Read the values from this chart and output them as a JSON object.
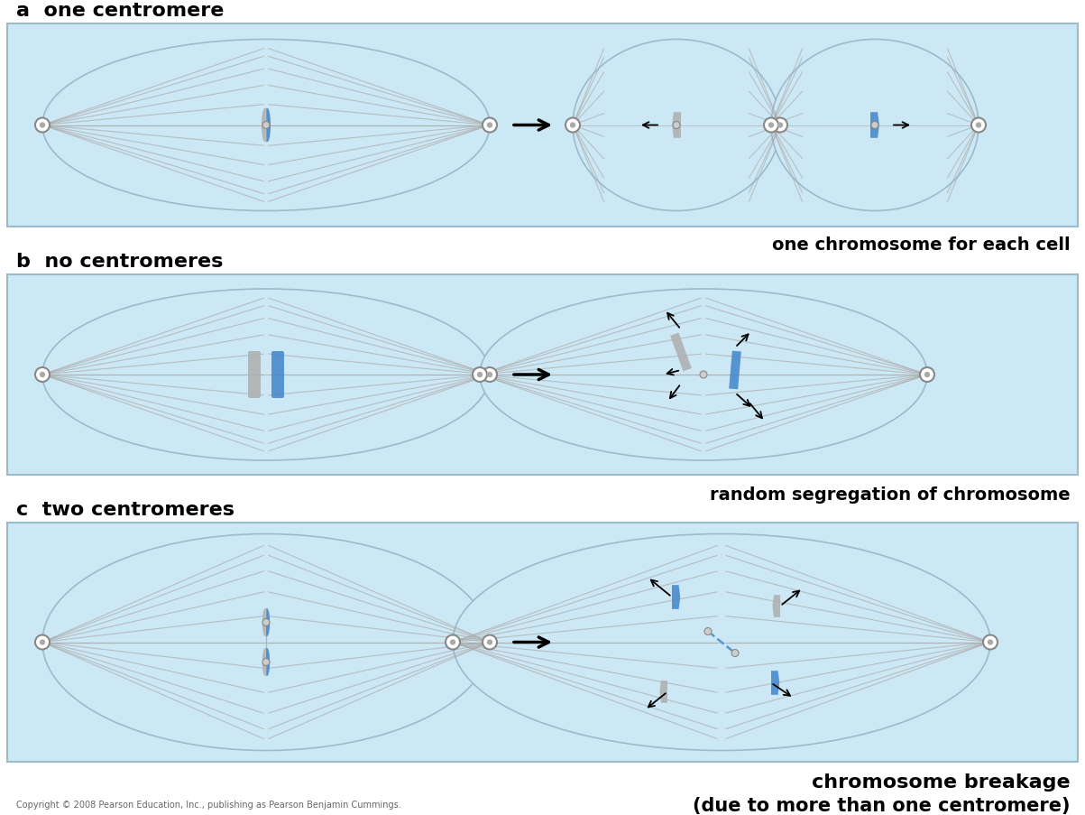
{
  "bg_color": "#ffffff",
  "panel_bg": "#cce8f4",
  "border_color": "#aaccdd",
  "gray_chr": "#b0b0b0",
  "blue_chr": "#4488cc",
  "spindle_color": "#aaaaaa",
  "arrow_color": "#111111",
  "label_a": "a  one centromere",
  "label_b": "b  no centromeres",
  "label_c": "c  two centromeres",
  "result_a": "one chromosome for each cell",
  "result_b": "random segregation of chromosome",
  "result_c_1": "chromosome breakage",
  "result_c_2": "(due to more than one centromere)",
  "copyright": "Copyright © 2008 Pearson Education, Inc., publishing as Pearson Benjamin Cummings.",
  "fig_width": 12.03,
  "fig_height": 9.04
}
